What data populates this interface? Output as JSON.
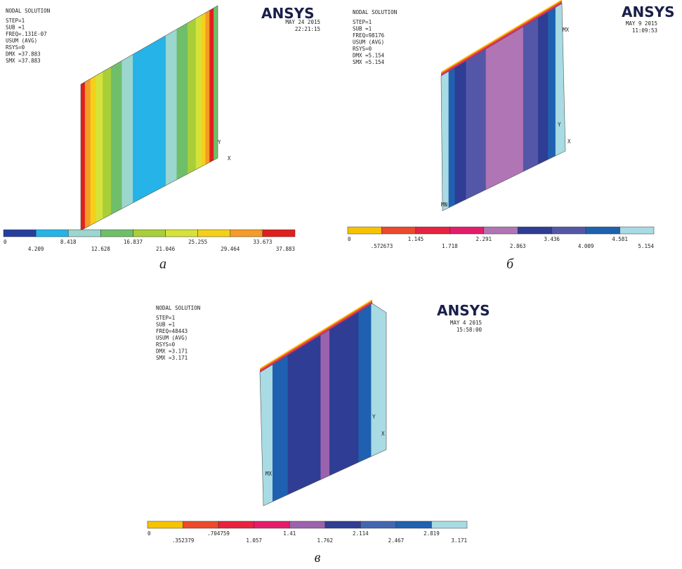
{
  "panels": [
    {
      "label": "а",
      "header": {
        "title": "NODAL SOLUTION",
        "lines": [
          "STEP=1",
          "SUB =1",
          "FREQ=.131E-07",
          "USUM      (AVG)",
          "RSYS=0",
          "DMX =37.883",
          "SMX =37.883"
        ]
      },
      "logo": "ANSYS",
      "date": "MAY 24 2015",
      "time": "22:21:15",
      "legend": {
        "labels": [
          "0",
          "4.209",
          "8.418",
          "12.628",
          "16.837",
          "21.046",
          "25.255",
          "29.464",
          "33.673",
          "37.883"
        ],
        "colors": [
          "#263f9c",
          "#25b3e8",
          "#9bd6cf",
          "#6fbf6a",
          "#a8cf3a",
          "#d6e23a",
          "#f5d019",
          "#f59b28",
          "#e0201d"
        ]
      },
      "markers": [
        "Y",
        "X"
      ]
    },
    {
      "label": "б",
      "header": {
        "title": "NODAL SOLUTION",
        "lines": [
          "STEP=1",
          "SUB =1",
          "FREQ=98176",
          "USUM      (AVG)",
          "RSYS=0",
          "DMX =5.154",
          "SMX =5.154"
        ]
      },
      "logo": "ANSYS",
      "date": "MAY  9 2015",
      "time": "11:09:53",
      "legend": {
        "labels": [
          "0",
          ".572673",
          "1.145",
          "1.718",
          "2.291",
          "2.863",
          "3.436",
          "4.009",
          "4.581",
          "5.154"
        ],
        "colors": [
          "#f7c300",
          "#ec4a2a",
          "#e8223f",
          "#e51c6a",
          "#b075b5",
          "#2f3d94",
          "#5457a8",
          "#1f61b0",
          "#a8dbe3"
        ]
      },
      "markers": [
        "MX",
        "Y",
        "X",
        "MN"
      ]
    },
    {
      "label": "в",
      "header": {
        "title": "NODAL SOLUTION",
        "lines": [
          "STEP=1",
          "SUB =1",
          "FREQ=48443",
          "USUM      (AVG)",
          "RSYS=0",
          "DMX =3.171",
          "SMX =3.171"
        ]
      },
      "logo": "ANSYS",
      "date": "MAY  4 2015",
      "time": "15:58:00",
      "legend": {
        "labels": [
          "0",
          ".352379",
          ".704759",
          "1.057",
          "1.41",
          "1.762",
          "2.114",
          "2.467",
          "2.819",
          "3.171"
        ],
        "colors": [
          "#f7c300",
          "#ec4a2a",
          "#e8223f",
          "#e51c6a",
          "#9b62ad",
          "#2f3d94",
          "#4466b0",
          "#1f61b0",
          "#a8dbe3"
        ]
      },
      "markers": [
        "Y",
        "X",
        "MX"
      ]
    }
  ]
}
